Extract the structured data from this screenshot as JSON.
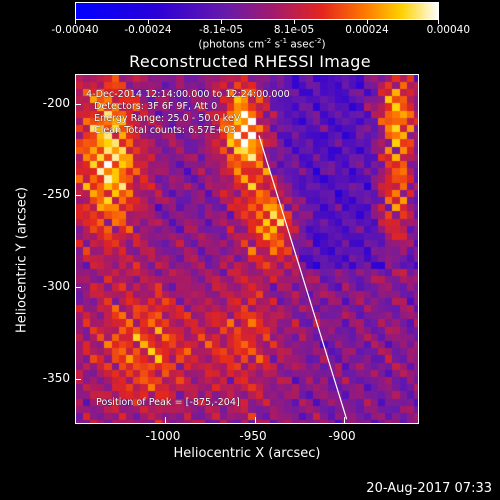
{
  "colorbar": {
    "tick_labels": [
      "-0.00040",
      "-0.00024",
      "-8.1e-05",
      "8.1e-05",
      "0.00024",
      "0.00040"
    ],
    "units_prefix": "(photons cm",
    "units_exp1": "-2",
    "units_mid1": " s",
    "units_exp2": "-1",
    "units_mid2": " asec",
    "units_exp3": "-2",
    "units_suffix": ")",
    "colormap": "blue-purple-red-yellow-white"
  },
  "title": "Reconstructed RHESSI Image",
  "annotations": {
    "time_range": "4-Dec-2014 12:14:00.000 to 12:24:00.000",
    "detectors": "Detectors: 3F 6F 9F, Att 0",
    "energy": "Energy Range: 25.0 - 50.0 keV",
    "clean": "Clean    Total counts: 6.57E+03",
    "peak": "Position of Peak = [-875,-204]"
  },
  "axes": {
    "xlabel": "Heliocentric X (arcsec)",
    "ylabel": "Heliocentric Y (arcsec)",
    "xticks": [
      "-1000",
      "-950",
      "-900"
    ],
    "yticks": [
      "-200",
      "-250",
      "-300",
      "-350"
    ]
  },
  "timestamp": "20-Aug-2017 07:33",
  "chart_data": {
    "type": "heatmap",
    "title": "Reconstructed RHESSI Image",
    "xlabel": "Heliocentric X (arcsec)",
    "ylabel": "Heliocentric Y (arcsec)",
    "xlim": [
      -1045,
      -948
    ],
    "xrange_note": "",
    "x_range": [
      -1048,
      -861
    ],
    "y_range": [
      -185,
      -375
    ],
    "xtick_values": [
      -1000,
      -950,
      -900
    ],
    "ytick_values": [
      -200,
      -250,
      -300,
      -350
    ],
    "colorbar_range": [
      -0.0004,
      0.0004
    ],
    "limb_line": [
      [
        -948,
        -218
      ],
      [
        -900,
        -373
      ]
    ],
    "peak": [
      -875,
      -204
    ]
  }
}
